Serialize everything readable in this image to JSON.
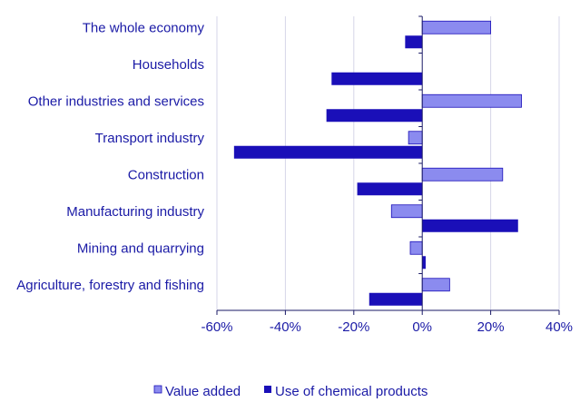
{
  "chart_data": {
    "type": "bar",
    "orientation": "horizontal",
    "title": "",
    "xlabel": "",
    "ylabel": "",
    "categories": [
      "The whole economy",
      "Households",
      "Other industries and services",
      "Transport industry",
      "Construction",
      "Manufacturing industry",
      "Mining and quarrying",
      "Agriculture, forestry and fishing"
    ],
    "series": [
      {
        "name": "Value added",
        "color": "#8b8bef",
        "values": [
          20,
          null,
          29,
          -4,
          23.5,
          -9,
          -3.5,
          8
        ]
      },
      {
        "name": "Use of chemical products",
        "color": "#1a0fb8",
        "values": [
          -5,
          -26.5,
          -28,
          -55,
          -19,
          28,
          1,
          -15.5
        ]
      }
    ],
    "xlim": [
      -60,
      40
    ],
    "ticks": [
      -60,
      -40,
      -20,
      0,
      20,
      40
    ],
    "tick_labels": [
      "-60%",
      "-40%",
      "-20%",
      "0%",
      "20%",
      "40%"
    ],
    "grid": true,
    "legend_position": "bottom"
  }
}
